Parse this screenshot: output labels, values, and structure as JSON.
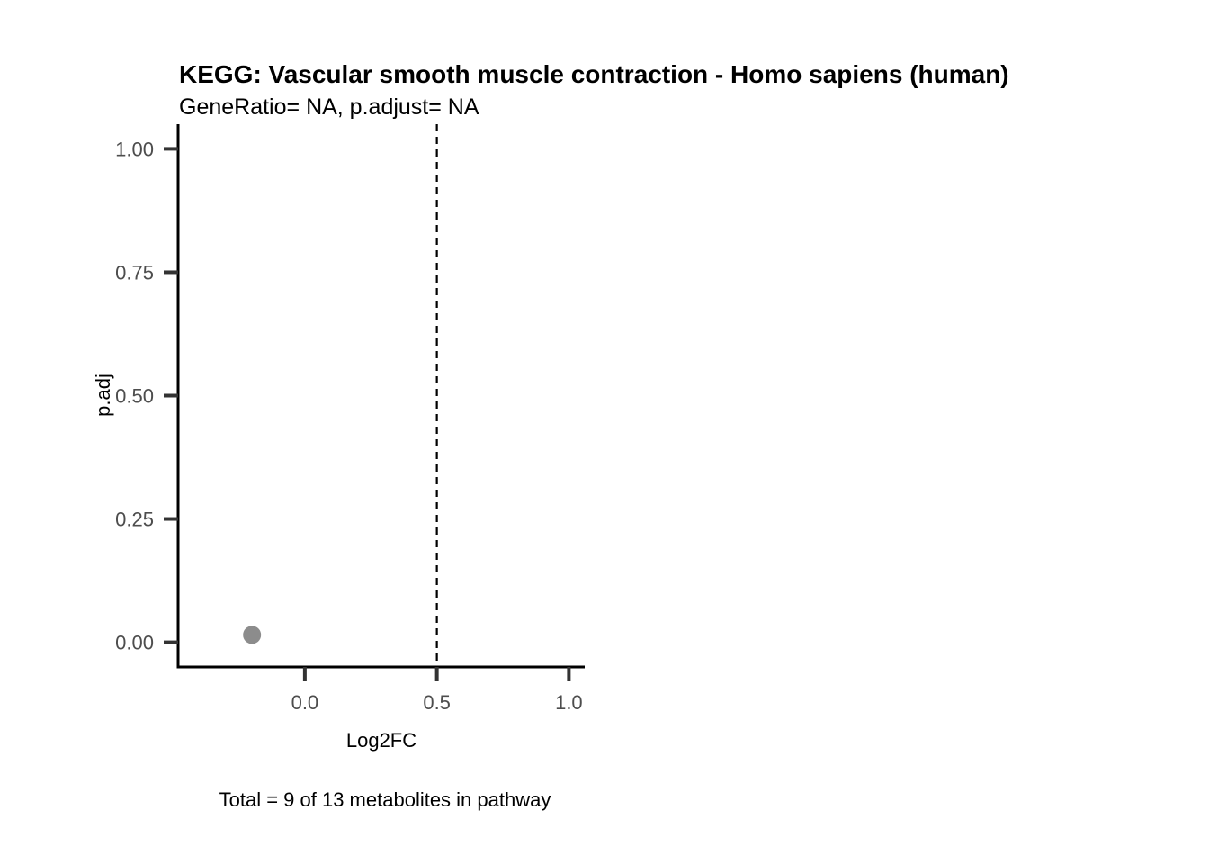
{
  "chart_data": {
    "type": "scatter",
    "title": "KEGG: Vascular smooth muscle contraction - Homo sapiens (human)",
    "subtitle": "GeneRatio= NA, p.adjust= NA",
    "xlabel": "Log2FC",
    "ylabel": "p.adj",
    "caption": "Total = 9 of 13 metabolites in pathway",
    "xlim": [
      -0.48,
      1.06
    ],
    "ylim": [
      -0.05,
      1.05
    ],
    "x_ticks": [
      0.0,
      0.5,
      1.0
    ],
    "x_tick_labels": [
      "0.0",
      "0.5",
      "1.0"
    ],
    "y_ticks": [
      0.0,
      0.25,
      0.5,
      0.75,
      1.0
    ],
    "y_tick_labels": [
      "0.00",
      "0.25",
      "0.50",
      "0.75",
      "1.00"
    ],
    "reference_lines": [
      {
        "axis": "x",
        "value": 0.5,
        "style": "dashed"
      }
    ],
    "points": [
      {
        "x": -0.2,
        "y": 0.015
      }
    ],
    "point_color": "#8c8c8c",
    "grid": false
  }
}
